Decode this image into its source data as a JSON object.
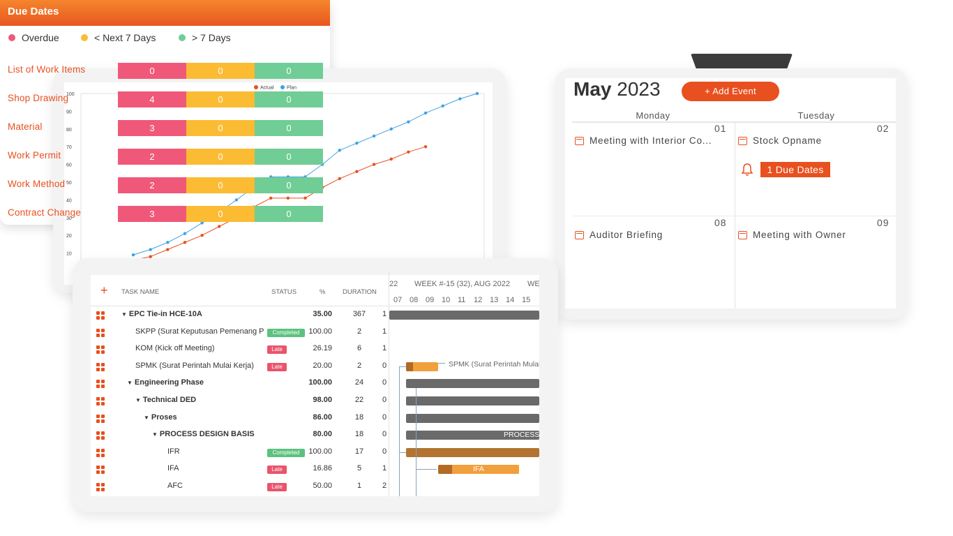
{
  "chart_data": {
    "type": "line",
    "title": "",
    "legend": [
      "Actual",
      "Plan"
    ],
    "ylim": [
      0,
      100
    ],
    "yticks": [
      "10",
      "20",
      "30",
      "40",
      "50",
      "60",
      "70",
      "80",
      "90",
      "100"
    ],
    "series": [
      {
        "name": "Plan",
        "color": "#3fa2e3",
        "values": [
          9,
          12,
          16,
          21,
          27,
          33,
          40,
          47,
          53,
          53,
          53,
          60,
          68,
          72,
          76,
          80,
          84,
          89,
          93,
          97,
          100
        ]
      },
      {
        "name": "Actual",
        "color": "#e8501f",
        "values": [
          6,
          8,
          12,
          16,
          20,
          25,
          30,
          36,
          41,
          41,
          41,
          47,
          52,
          56,
          60,
          63,
          67,
          70
        ]
      }
    ]
  },
  "calendar": {
    "month": "May",
    "year": "2023",
    "add_event_label": "+ Add Event",
    "days": [
      "Monday",
      "Tuesday"
    ],
    "cells": [
      {
        "num": "01",
        "event": "Meeting with Interior Co..."
      },
      {
        "num": "02",
        "event": "Stock Opname"
      },
      {
        "num": "08",
        "event": "Auditor Briefing"
      },
      {
        "num": "09",
        "event": "Meeting with Owner"
      }
    ],
    "due_badge": "1 Due Dates"
  },
  "gantt": {
    "headers": {
      "add": "+",
      "task": "TASK NAME",
      "status": "STATUS",
      "pct": "%",
      "duration": "DURATION"
    },
    "timeline": {
      "left": "22",
      "week": "WEEK #-15 (32), AUG 2022",
      "right": "WE",
      "days": [
        "07",
        "08",
        "09",
        "10",
        "11",
        "12",
        "13",
        "14",
        "15"
      ]
    },
    "rows": [
      {
        "name": "EPC Tie-in HCE-10A",
        "indent": 0,
        "caret": true,
        "bold": true,
        "status": "",
        "pct": "35.00",
        "dur": "367",
        "start": "1"
      },
      {
        "name": "SKPP (Surat Keputusan Pemenang Pe",
        "indent": 2,
        "caret": false,
        "bold": false,
        "status": "Completed",
        "pct": "100.00",
        "dur": "2",
        "start": "1"
      },
      {
        "name": "KOM (Kick off Meeting)",
        "indent": 2,
        "caret": false,
        "bold": false,
        "status": "Late",
        "pct": "26.19",
        "dur": "6",
        "start": "1"
      },
      {
        "name": "SPMK (Surat Perintah Mulai Kerja)",
        "indent": 2,
        "caret": false,
        "bold": false,
        "status": "Late",
        "pct": "20.00",
        "dur": "2",
        "start": "0"
      },
      {
        "name": "Engineering Phase",
        "indent": 1,
        "caret": true,
        "bold": true,
        "status": "",
        "pct": "100.00",
        "dur": "24",
        "start": "0"
      },
      {
        "name": "Technical DED",
        "indent": 2,
        "caret": true,
        "bold": true,
        "status": "",
        "pct": "98.00",
        "dur": "22",
        "start": "0"
      },
      {
        "name": "Proses",
        "indent": 3,
        "caret": true,
        "bold": true,
        "status": "",
        "pct": "86.00",
        "dur": "18",
        "start": "0"
      },
      {
        "name": "PROCESS DESIGN BASIS",
        "indent": 4,
        "caret": true,
        "bold": true,
        "status": "",
        "pct": "80.00",
        "dur": "18",
        "start": "0"
      },
      {
        "name": "IFR",
        "indent": 5,
        "caret": false,
        "bold": false,
        "status": "Completed",
        "pct": "100.00",
        "dur": "17",
        "start": "0"
      },
      {
        "name": "IFA",
        "indent": 5,
        "caret": false,
        "bold": false,
        "status": "Late",
        "pct": "16.86",
        "dur": "5",
        "start": "1"
      },
      {
        "name": "AFC",
        "indent": 5,
        "caret": false,
        "bold": false,
        "status": "Late",
        "pct": "50.00",
        "dur": "1",
        "start": "2"
      }
    ],
    "bar_labels": {
      "spmk": "SPMK (Surat Perintah Mulai",
      "process": "PROCESS",
      "ifa": "IFA"
    }
  },
  "due_dates": {
    "title": "Due Dates",
    "legend": [
      {
        "label": "Overdue",
        "color": "#f0587a"
      },
      {
        "label": "< Next 7 Days",
        "color": "#fbbb33"
      },
      {
        "label": "> 7 Days",
        "color": "#6fcd95"
      }
    ],
    "rows": [
      {
        "label": "List of Work Items",
        "overdue": "0",
        "next7": "0",
        "later": "0"
      },
      {
        "label": "Shop Drawing",
        "overdue": "4",
        "next7": "0",
        "later": "0"
      },
      {
        "label": "Material",
        "overdue": "3",
        "next7": "0",
        "later": "0"
      },
      {
        "label": "Work Permit",
        "overdue": "2",
        "next7": "0",
        "later": "0"
      },
      {
        "label": "Work Method",
        "overdue": "2",
        "next7": "0",
        "later": "0"
      },
      {
        "label": "Contract Change",
        "overdue": "3",
        "next7": "0",
        "later": "0"
      }
    ]
  }
}
